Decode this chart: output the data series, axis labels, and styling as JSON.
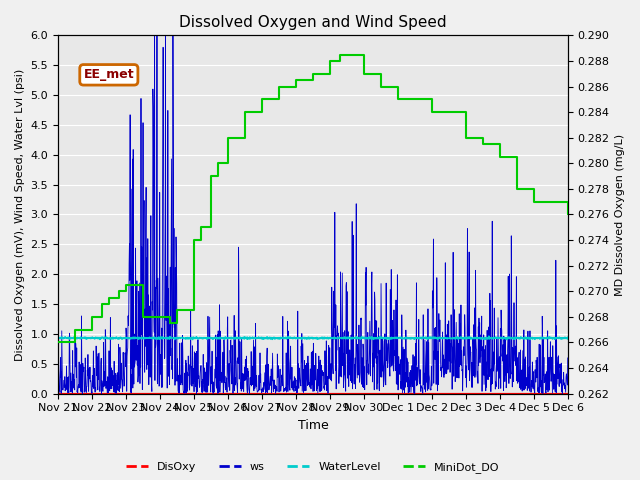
{
  "title": "Dissolved Oxygen and Wind Speed",
  "ylabel_left": "Dissolved Oxygen (mV), Wind Speed, Water Lvl (psi)",
  "ylabel_right": "MD Dissolved Oxygen (mg/L)",
  "xlabel": "Time",
  "ylim_left": [
    0.0,
    6.0
  ],
  "ylim_right": [
    0.262,
    0.29
  ],
  "annotation_text": "EE_met",
  "bg_color": "#e8e8e8",
  "legend_labels": [
    "DisOxy",
    "ws",
    "WaterLevel",
    "MiniDot_DO"
  ],
  "legend_colors": [
    "#ff0000",
    "#0000cc",
    "#00cccc",
    "#00cc00"
  ],
  "x_tick_labels": [
    "Nov 21",
    "Nov 22",
    "Nov 23",
    "Nov 24",
    "Nov 25",
    "Nov 26",
    "Nov 27",
    "Nov 28",
    "Nov 29",
    "Nov 30",
    "Dec 1",
    "Dec 2",
    "Dec 3",
    "Dec 4",
    "Dec 5",
    "Dec 6"
  ],
  "water_level_value": 0.93,
  "minidot_t": [
    0.0,
    0.5,
    1.0,
    1.3,
    1.5,
    1.8,
    2.0,
    2.5,
    3.0,
    3.3,
    3.5,
    4.0,
    4.2,
    4.5,
    4.7,
    5.0,
    5.5,
    6.0,
    6.5,
    7.0,
    7.5,
    8.0,
    8.3,
    8.5,
    9.0,
    9.5,
    10.0,
    11.0,
    12.0,
    12.5,
    13.0,
    13.5,
    14.0,
    14.5,
    15.0
  ],
  "minidot_v": [
    0.266,
    0.267,
    0.268,
    0.269,
    0.2695,
    0.27,
    0.2705,
    0.268,
    0.268,
    0.2675,
    0.2685,
    0.274,
    0.275,
    0.279,
    0.28,
    0.282,
    0.284,
    0.285,
    0.286,
    0.2865,
    0.287,
    0.288,
    0.2885,
    0.2885,
    0.287,
    0.286,
    0.285,
    0.284,
    0.282,
    0.2815,
    0.2805,
    0.278,
    0.277,
    0.277,
    0.276
  ]
}
